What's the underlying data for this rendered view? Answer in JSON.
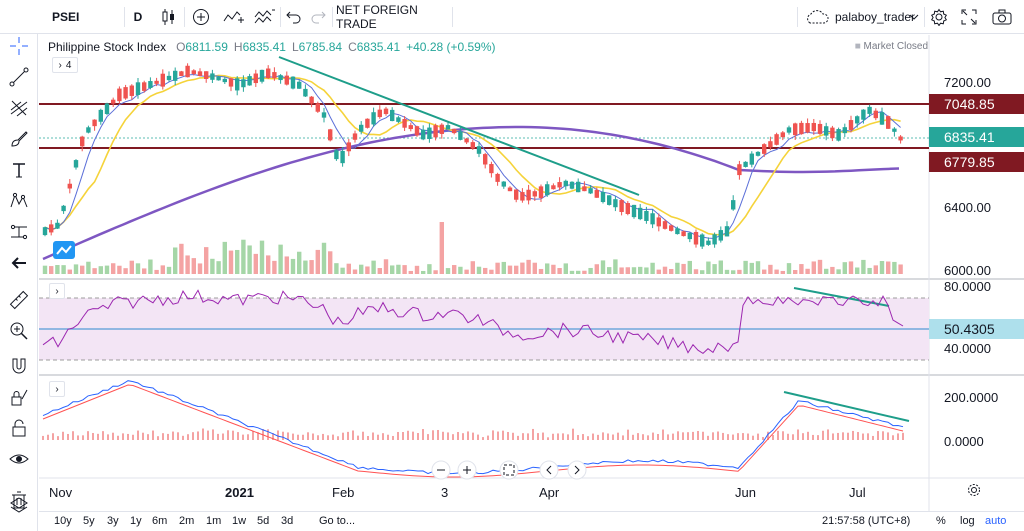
{
  "toolbar": {
    "symbol": "PSEI",
    "interval": "D",
    "chart_title": "NET FOREIGN TRADE",
    "username": "palaboy_trader"
  },
  "legend": {
    "name": "Philippine Stock Index",
    "open_label": "O",
    "open": "6811.59",
    "high_label": "H",
    "high": "6835.41",
    "low_label": "L",
    "low": "6785.84",
    "close_label": "C",
    "close": "6835.41",
    "change": "+40.28 (+0.59%)",
    "market_status": "Market Closed",
    "indicator_count": "4"
  },
  "price_axis": {
    "ticks": [
      "7200.00",
      "6400.00",
      "6000.00"
    ],
    "resistance": "7048.85",
    "last": "6835.41",
    "support": "6779.85"
  },
  "rsi_axis": {
    "ticks": [
      "80.0000",
      "40.0000"
    ],
    "value": "50.4305"
  },
  "macd_axis": {
    "ticks": [
      "200.0000",
      "0.0000"
    ]
  },
  "time_axis": {
    "labels": [
      "Nov",
      "2021",
      "Feb",
      "3",
      "Apr",
      "Jun",
      "Jul"
    ]
  },
  "bottom": {
    "ranges": [
      "10y",
      "5y",
      "3y",
      "1y",
      "6m",
      "2m",
      "1m",
      "1w",
      "5d",
      "3d"
    ],
    "goto": "Go to...",
    "time": "21:57:58 (UTC+8)",
    "percent": "%",
    "log": "log",
    "auto": "auto"
  },
  "colors": {
    "up": "#26a69a",
    "down": "#ef5350",
    "ma_fast": "#5b6fd8",
    "ma_slow": "#f5d33a",
    "ma_long": "#7e57c2",
    "level": "#801922",
    "trend": "#1e9e8a",
    "rsi": "#9c27b0",
    "rsi_band": "#f3e5f5",
    "rsi_mid": "#6fa8dc",
    "macd": "#2962ff",
    "signal": "#ff5252",
    "accent": "#2962ff"
  },
  "icons": [
    "crosshair-icon",
    "trendline-icon",
    "fib-icon",
    "brush-icon",
    "text-icon",
    "pattern-icon",
    "measure-icon",
    "back-arrow-icon",
    "ruler-icon",
    "zoom-icon",
    "magnet-icon",
    "lock-draw-icon",
    "lock-icon",
    "eye-icon",
    "trash-icon",
    "layers-icon"
  ]
}
